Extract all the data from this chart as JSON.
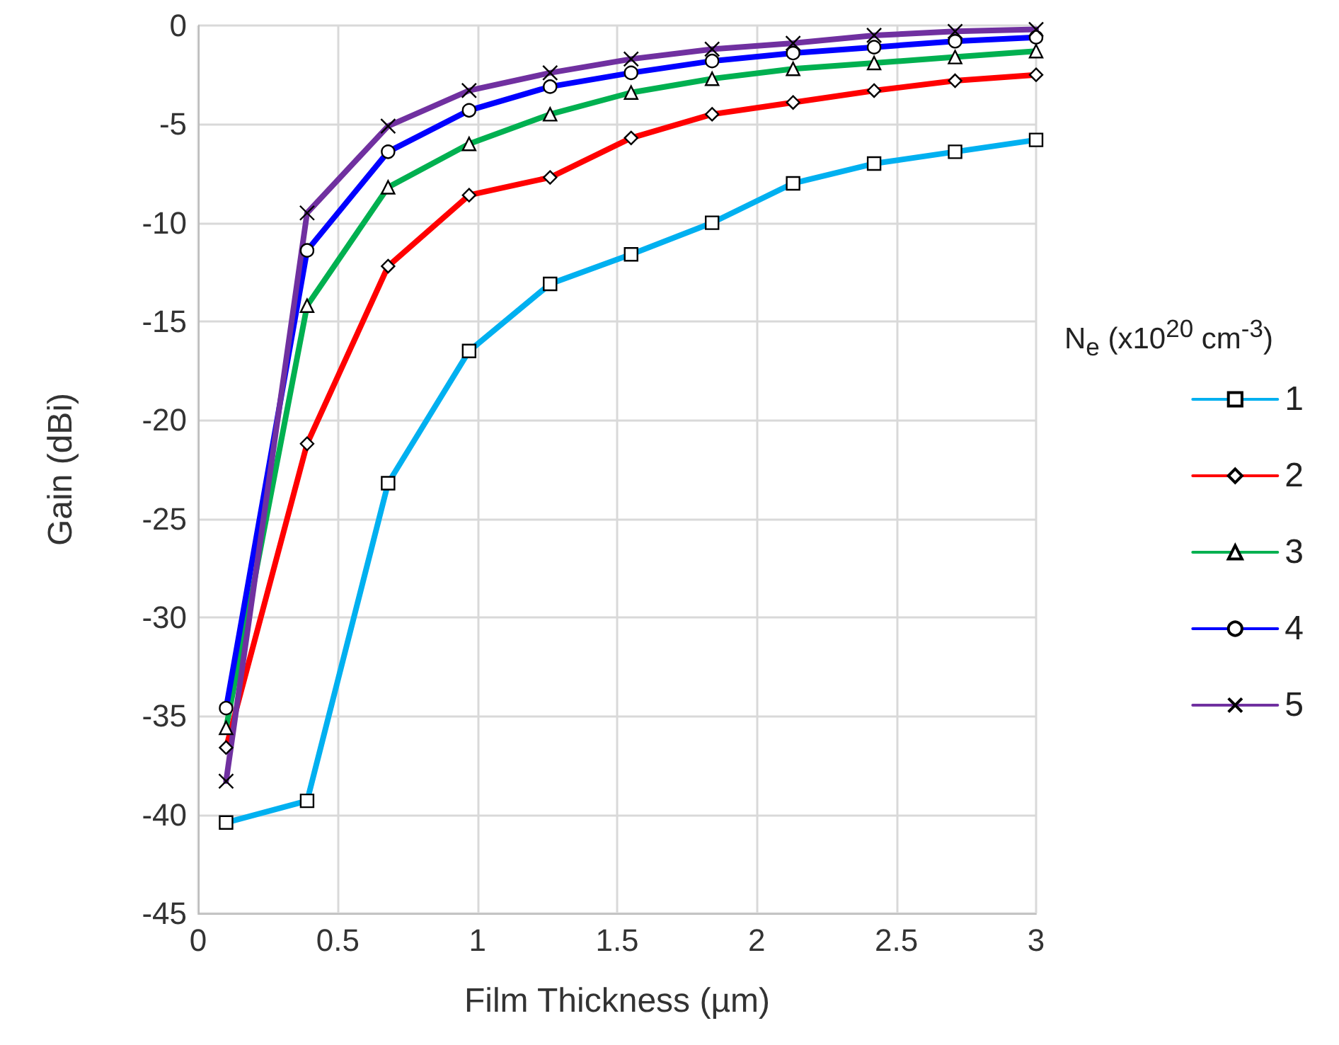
{
  "chart_data": {
    "type": "line",
    "xlabel": "Film Thickness (µm)",
    "ylabel": "Gain (dBi)",
    "legend_title": "N$_{e}$ (x10$^{20}$ cm$^{-3}$)",
    "x": [
      0.1,
      0.39,
      0.68,
      0.97,
      1.26,
      1.55,
      1.84,
      2.13,
      2.42,
      2.71,
      3.0
    ],
    "series": [
      {
        "name": "1",
        "color": "#00b0f0",
        "marker": "square",
        "values": [
          -40.4,
          -39.3,
          -23.2,
          -16.5,
          -13.1,
          -11.6,
          -10.0,
          -8.0,
          -7.0,
          -6.4,
          -5.8
        ]
      },
      {
        "name": "2",
        "color": "#ff0000",
        "marker": "diamond",
        "values": [
          -36.6,
          -21.2,
          -12.2,
          -8.6,
          -7.7,
          -5.7,
          -4.5,
          -3.9,
          -3.3,
          -2.8,
          -2.5
        ]
      },
      {
        "name": "3",
        "color": "#00b050",
        "marker": "triangle",
        "values": [
          -35.6,
          -14.2,
          -8.2,
          -6.0,
          -4.5,
          -3.4,
          -2.7,
          -2.2,
          -1.9,
          -1.6,
          -1.3
        ]
      },
      {
        "name": "4",
        "color": "#0000ff",
        "marker": "circle",
        "values": [
          -34.6,
          -11.4,
          -6.4,
          -4.3,
          -3.1,
          -2.4,
          -1.8,
          -1.4,
          -1.1,
          -0.8,
          -0.6
        ]
      },
      {
        "name": "5",
        "color": "#7030a0",
        "marker": "cross",
        "values": [
          -38.3,
          -9.5,
          -5.1,
          -3.3,
          -2.4,
          -1.7,
          -1.2,
          -0.9,
          -0.5,
          -0.3,
          -0.2
        ]
      }
    ],
    "xlim": [
      0,
      3
    ],
    "xticks": [
      0,
      0.5,
      1,
      1.5,
      2,
      2.5,
      3
    ],
    "ylim": [
      -45,
      0
    ],
    "yticks": [
      -45,
      -40,
      -35,
      -30,
      -25,
      -20,
      -15,
      -10,
      -5,
      0
    ],
    "grid": true,
    "legend": "right",
    "line_style": "solid"
  }
}
